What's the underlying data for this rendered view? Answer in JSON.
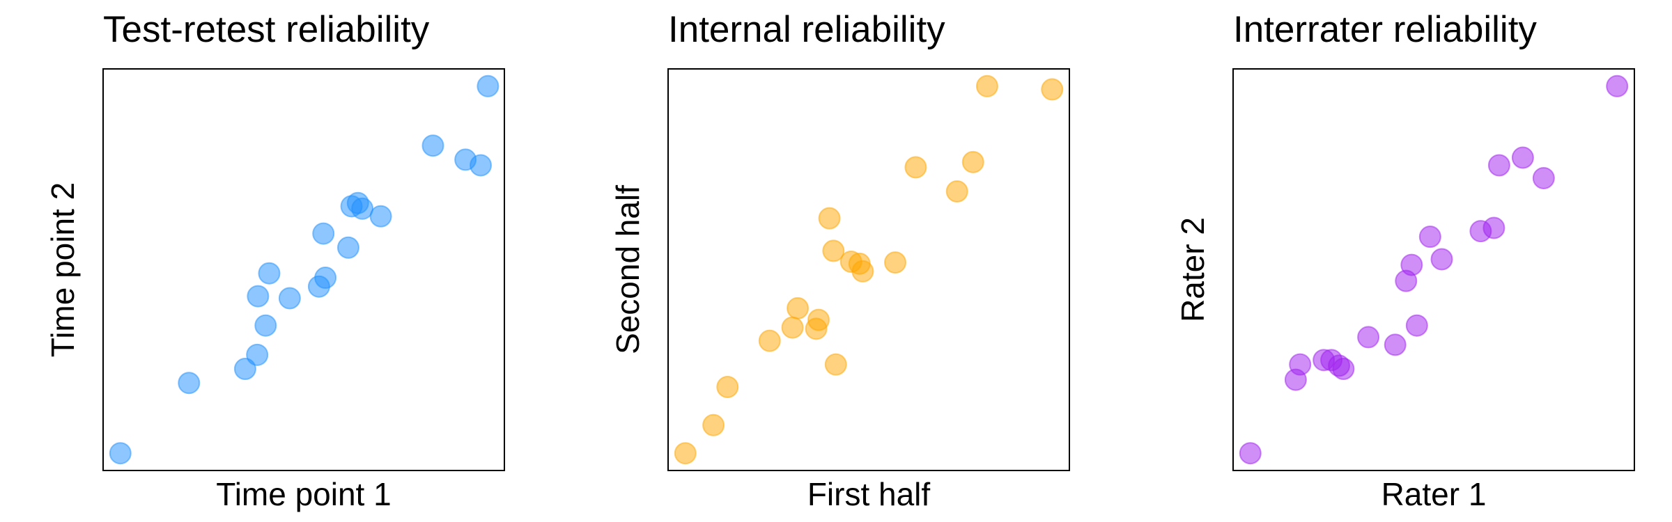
{
  "chart_data": [
    {
      "type": "scatter",
      "title": "Test-retest reliability",
      "xlabel": "Time point 1",
      "ylabel": "Time point 2",
      "color": "#1E90FF",
      "xlim": [
        0,
        1
      ],
      "ylim": [
        0,
        1
      ],
      "x": [
        0.043,
        0.214,
        0.354,
        0.384,
        0.405,
        0.386,
        0.414,
        0.465,
        0.538,
        0.554,
        0.549,
        0.611,
        0.619,
        0.635,
        0.646,
        0.692,
        0.822,
        0.903,
        0.941,
        0.959
      ],
      "y": [
        0.043,
        0.218,
        0.253,
        0.288,
        0.361,
        0.434,
        0.491,
        0.429,
        0.458,
        0.48,
        0.59,
        0.555,
        0.658,
        0.666,
        0.652,
        0.633,
        0.809,
        0.774,
        0.76,
        0.957
      ]
    },
    {
      "type": "scatter",
      "title": "Internal reliability",
      "xlabel": "First half",
      "ylabel": "Second half",
      "color": "#FFA500",
      "xlim": [
        0,
        1
      ],
      "ylim": [
        0,
        1
      ],
      "x": [
        0.043,
        0.113,
        0.148,
        0.253,
        0.31,
        0.323,
        0.369,
        0.375,
        0.418,
        0.402,
        0.412,
        0.456,
        0.477,
        0.485,
        0.566,
        0.617,
        0.72,
        0.76,
        0.795,
        0.957
      ],
      "y": [
        0.043,
        0.113,
        0.208,
        0.323,
        0.356,
        0.404,
        0.353,
        0.375,
        0.264,
        0.628,
        0.547,
        0.52,
        0.515,
        0.496,
        0.518,
        0.755,
        0.695,
        0.768,
        0.957,
        0.949
      ]
    },
    {
      "type": "scatter",
      "title": "Interrater reliability",
      "xlabel": "Rater 1",
      "ylabel": "Rater 2",
      "color": "#A020F0",
      "xlim": [
        0,
        1
      ],
      "ylim": [
        0,
        1
      ],
      "x": [
        0.043,
        0.156,
        0.167,
        0.226,
        0.245,
        0.264,
        0.275,
        0.337,
        0.404,
        0.431,
        0.445,
        0.458,
        0.491,
        0.52,
        0.617,
        0.65,
        0.663,
        0.722,
        0.774,
        0.957
      ],
      "y": [
        0.043,
        0.226,
        0.264,
        0.275,
        0.275,
        0.261,
        0.253,
        0.332,
        0.313,
        0.472,
        0.512,
        0.361,
        0.582,
        0.526,
        0.596,
        0.604,
        0.76,
        0.779,
        0.728,
        0.957
      ]
    }
  ]
}
